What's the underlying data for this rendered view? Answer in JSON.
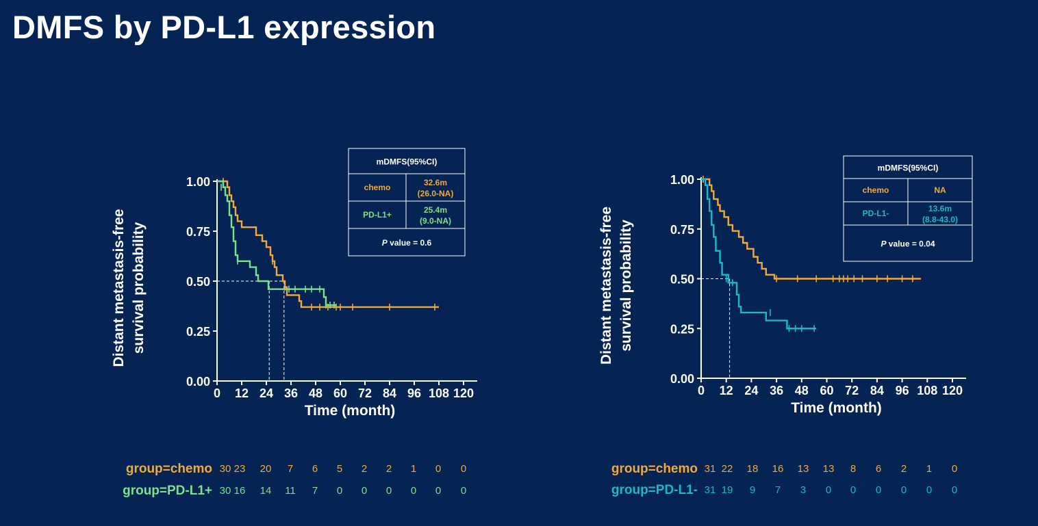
{
  "title": "DMFS by PD-L1 expression",
  "colors": {
    "background": "#052453",
    "chemo": "#f2a93b",
    "pdl1_pos": "#7de08c",
    "pdl1_neg": "#1ab8c9",
    "text": "#ffffff"
  },
  "chart_data": [
    {
      "type": "line",
      "subtype": "kaplan-meier",
      "xlabel": "Time (month)",
      "ylabel": [
        "Distant metastasis-free",
        "survival probability"
      ],
      "xlim": [
        0,
        120
      ],
      "ylim": [
        0,
        1
      ],
      "xticks": [
        0,
        12,
        24,
        36,
        48,
        60,
        72,
        84,
        96,
        108,
        120
      ],
      "xtick_labels": [
        "0",
        "12",
        "24",
        "36",
        "48",
        "60",
        "72",
        "84",
        "96",
        "108",
        "120"
      ],
      "yticks": [
        0,
        0.25,
        0.5,
        0.75,
        1
      ],
      "ytick_labels": [
        "0.00",
        "0.25",
        "0.50",
        "0.75",
        "1.00"
      ],
      "median_lines": [
        25.4,
        32.6
      ],
      "series": [
        {
          "key": "chemo",
          "color": "#f2a93b",
          "steps": [
            [
              0,
              1
            ],
            [
              4,
              1
            ],
            [
              5,
              0.97
            ],
            [
              6,
              0.93
            ],
            [
              7,
              0.9
            ],
            [
              8,
              0.87
            ],
            [
              9,
              0.83
            ],
            [
              10,
              0.8
            ],
            [
              12,
              0.77
            ],
            [
              15,
              0.77
            ],
            [
              19,
              0.73
            ],
            [
              22,
              0.7
            ],
            [
              24,
              0.67
            ],
            [
              26,
              0.63
            ],
            [
              27,
              0.6
            ],
            [
              28,
              0.57
            ],
            [
              29,
              0.53
            ],
            [
              31,
              0.53
            ],
            [
              32,
              0.5
            ],
            [
              33,
              0.47
            ],
            [
              34,
              0.43
            ],
            [
              39,
              0.43
            ],
            [
              40,
              0.4
            ],
            [
              41,
              0.37
            ],
            [
              108,
              0.37
            ]
          ],
          "censors": [
            [
              3,
              1
            ],
            [
              27,
              0.6
            ],
            [
              33,
              0.47
            ],
            [
              46,
              0.37
            ],
            [
              50,
              0.37
            ],
            [
              54,
              0.37
            ],
            [
              58,
              0.37
            ],
            [
              60,
              0.37
            ],
            [
              66,
              0.37
            ],
            [
              84,
              0.37
            ],
            [
              106,
              0.37
            ]
          ]
        },
        {
          "key": "pdl1_pos",
          "color": "#7de08c",
          "steps": [
            [
              0,
              1
            ],
            [
              2,
              1
            ],
            [
              3,
              0.97
            ],
            [
              4,
              0.93
            ],
            [
              5,
              0.9
            ],
            [
              6,
              0.83
            ],
            [
              7,
              0.77
            ],
            [
              8,
              0.7
            ],
            [
              9,
              0.63
            ],
            [
              10,
              0.6
            ],
            [
              16,
              0.57
            ],
            [
              19,
              0.53
            ],
            [
              20,
              0.5
            ],
            [
              24,
              0.5
            ],
            [
              25,
              0.46
            ],
            [
              51,
              0.46
            ],
            [
              52,
              0.42
            ],
            [
              53,
              0.38
            ],
            [
              58,
              0.38
            ]
          ],
          "censors": [
            [
              2,
              0.97
            ],
            [
              10,
              0.6
            ],
            [
              35,
              0.46
            ],
            [
              38,
              0.46
            ],
            [
              43,
              0.46
            ],
            [
              46,
              0.46
            ],
            [
              50,
              0.46
            ],
            [
              53,
              0.38
            ],
            [
              55,
              0.38
            ],
            [
              57,
              0.38
            ]
          ]
        }
      ],
      "table": {
        "header": "mDMFS(95%CI)",
        "rows": [
          {
            "label": "chemo",
            "value": [
              "32.6m",
              "(26.0-NA)"
            ],
            "color": "#f2a93b"
          },
          {
            "label": "PD-L1+",
            "value": [
              "25.4m",
              "(9.0-NA)"
            ],
            "color": "#7de08c"
          }
        ],
        "p_label": "P",
        "p_text": " value = 0.6"
      },
      "risk": [
        {
          "label": "group=chemo",
          "color": "#f2a93b",
          "counts": [
            "30",
            "23",
            "20",
            "7",
            "6",
            "5",
            "2",
            "2",
            "1",
            "0",
            "0"
          ]
        },
        {
          "label": "group=PD-L1+",
          "color": "#7de08c",
          "counts": [
            "30",
            "16",
            "14",
            "11",
            "7",
            "0",
            "0",
            "0",
            "0",
            "0",
            "0"
          ]
        }
      ]
    },
    {
      "type": "line",
      "subtype": "kaplan-meier",
      "xlabel": "Time (month)",
      "ylabel": [
        "Distant metastasis-free",
        "survival probability"
      ],
      "xlim": [
        0,
        120
      ],
      "ylim": [
        0,
        1
      ],
      "xticks": [
        0,
        12,
        24,
        36,
        48,
        60,
        72,
        84,
        96,
        108,
        120
      ],
      "xtick_labels": [
        "0",
        "12",
        "24",
        "36",
        "48",
        "60",
        "72",
        "84",
        "96",
        "108",
        "120"
      ],
      "yticks": [
        0,
        0.25,
        0.5,
        0.75,
        1
      ],
      "ytick_labels": [
        "0.00",
        "0.25",
        "0.50",
        "0.75",
        "1.00"
      ],
      "median_lines": [
        13.6
      ],
      "series": [
        {
          "key": "chemo",
          "color": "#f2a93b",
          "steps": [
            [
              0,
              1
            ],
            [
              3,
              1
            ],
            [
              4,
              0.97
            ],
            [
              5,
              0.94
            ],
            [
              6,
              0.9
            ],
            [
              8,
              0.87
            ],
            [
              9,
              0.84
            ],
            [
              11,
              0.81
            ],
            [
              13,
              0.77
            ],
            [
              15,
              0.74
            ],
            [
              18,
              0.71
            ],
            [
              20,
              0.68
            ],
            [
              22,
              0.65
            ],
            [
              25,
              0.61
            ],
            [
              27,
              0.58
            ],
            [
              29,
              0.55
            ],
            [
              31,
              0.52
            ],
            [
              35,
              0.5
            ],
            [
              105,
              0.5
            ]
          ],
          "censors": [
            [
              1,
              1
            ],
            [
              36,
              0.5
            ],
            [
              46,
              0.5
            ],
            [
              55,
              0.5
            ],
            [
              63,
              0.5
            ],
            [
              66,
              0.5
            ],
            [
              68,
              0.5
            ],
            [
              70,
              0.5
            ],
            [
              73,
              0.5
            ],
            [
              77,
              0.5
            ],
            [
              84,
              0.5
            ],
            [
              89,
              0.5
            ],
            [
              96,
              0.5
            ],
            [
              101,
              0.5
            ]
          ]
        },
        {
          "key": "pdl1_neg",
          "color": "#1ab8c9",
          "steps": [
            [
              0,
              1
            ],
            [
              1,
              1
            ],
            [
              2,
              0.97
            ],
            [
              3,
              0.9
            ],
            [
              4,
              0.84
            ],
            [
              5,
              0.77
            ],
            [
              6,
              0.71
            ],
            [
              7,
              0.64
            ],
            [
              9,
              0.58
            ],
            [
              10,
              0.52
            ],
            [
              13,
              0.48
            ],
            [
              17,
              0.42
            ],
            [
              18,
              0.36
            ],
            [
              19,
              0.33
            ],
            [
              31,
              0.29
            ],
            [
              41,
              0.25
            ],
            [
              55,
              0.25
            ]
          ],
          "censors": [
            [
              12,
              0.5
            ],
            [
              15,
              0.48
            ],
            [
              33,
              0.33
            ],
            [
              42,
              0.25
            ],
            [
              45,
              0.25
            ],
            [
              48,
              0.25
            ],
            [
              54,
              0.25
            ]
          ]
        }
      ],
      "table": {
        "header": "mDMFS(95%CI)",
        "rows": [
          {
            "label": "chemo",
            "value": [
              "NA"
            ],
            "color": "#f2a93b"
          },
          {
            "label": "PD-L1-",
            "value": [
              "13.6m",
              "(8.8-43.0)"
            ],
            "color": "#1ab8c9"
          }
        ],
        "p_label": "P",
        "p_text": " value = 0.04"
      },
      "risk": [
        {
          "label": "group=chemo",
          "color": "#f2a93b",
          "counts": [
            "31",
            "22",
            "18",
            "16",
            "13",
            "13",
            "8",
            "6",
            "2",
            "1",
            "0"
          ]
        },
        {
          "label": "group=PD-L1-",
          "color": "#1ab8c9",
          "counts": [
            "31",
            "19",
            "9",
            "7",
            "3",
            "0",
            "0",
            "0",
            "0",
            "0",
            "0"
          ]
        }
      ]
    }
  ]
}
